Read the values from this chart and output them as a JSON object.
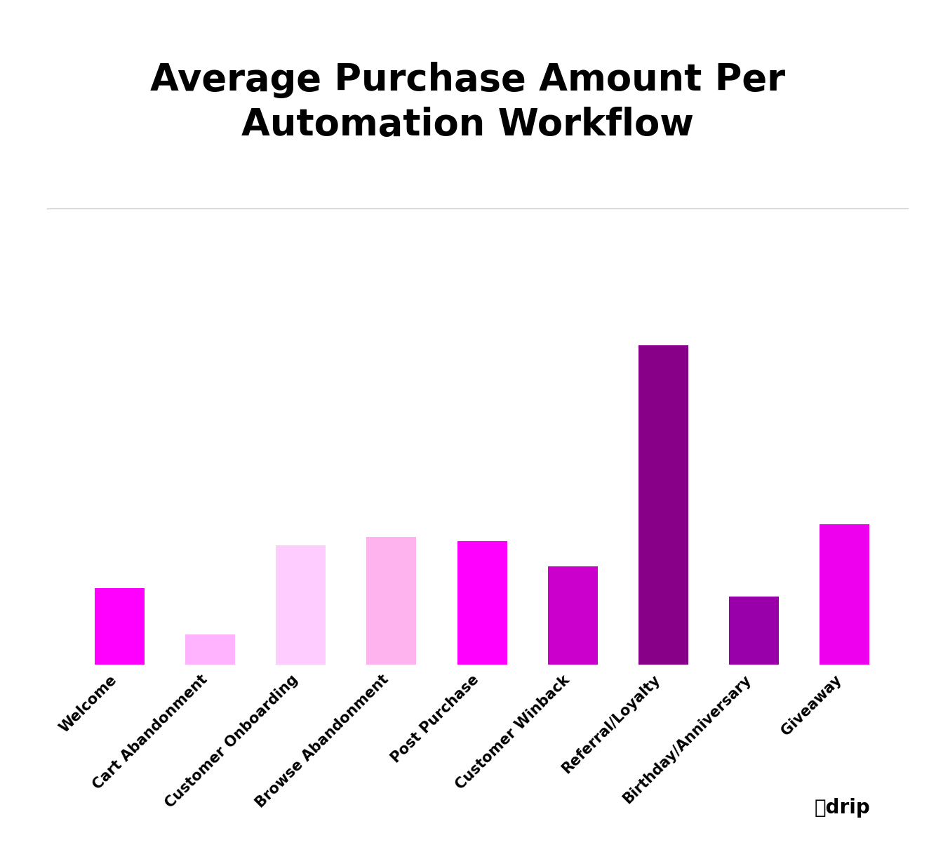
{
  "title": "Average Purchase Amount Per\nAutomation Workflow",
  "categories": [
    "Welcome",
    "Cart Abandonment",
    "Customer Onboarding",
    "Browse Abandonment",
    "Post Purchase",
    "Customer Winback",
    "Referral/Loyalty",
    "Birthday/Anniversary",
    "Giveaway"
  ],
  "values": [
    18,
    7,
    28,
    30,
    29,
    23,
    75,
    16,
    33
  ],
  "bar_colors": [
    "#FF00FF",
    "#FFB3FF",
    "#FFCCFF",
    "#FFB3EE",
    "#FF00FF",
    "#CC00CC",
    "#880088",
    "#9900AA",
    "#EE00EE"
  ],
  "background_color": "#FFFFFF",
  "title_fontsize": 38,
  "tick_fontsize": 15,
  "figsize": [
    13.34,
    12.14
  ],
  "dpi": 100,
  "ylim": [
    0,
    100
  ],
  "grid_color": "#CCCCCC",
  "grid_linewidth": 0.8,
  "bar_width": 0.55
}
